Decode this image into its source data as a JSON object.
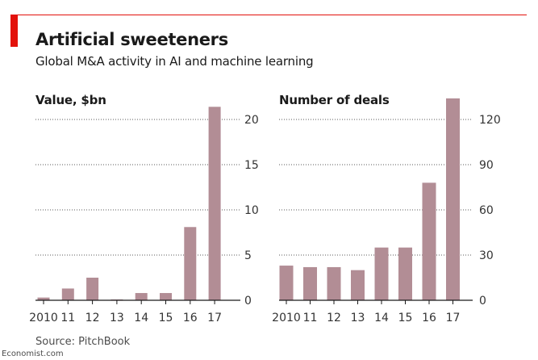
{
  "header": {
    "title": "Artificial sweeteners",
    "subtitle": "Global M&A activity in AI and machine learning"
  },
  "footer": {
    "source": "Source: PitchBook",
    "credit": "Economist.com"
  },
  "colors": {
    "bar": "#b28d95",
    "accent": "#e3120b",
    "grid": "#5a5a5a"
  },
  "chart_data": [
    {
      "type": "bar",
      "title": "Value, $bn",
      "categories": [
        "2010",
        "11",
        "12",
        "13",
        "14",
        "15",
        "16",
        "17"
      ],
      "values": [
        0.3,
        1.3,
        2.5,
        0.05,
        0.8,
        0.8,
        8.1,
        21.4
      ],
      "yticks": [
        0,
        5,
        10,
        15,
        20
      ],
      "ylim": [
        0,
        21.5
      ],
      "grid": true
    },
    {
      "type": "bar",
      "title": "Number of deals",
      "categories": [
        "2010",
        "11",
        "12",
        "13",
        "14",
        "15",
        "16",
        "17"
      ],
      "values": [
        23,
        22,
        22,
        20,
        35,
        35,
        78,
        134
      ],
      "yticks": [
        0,
        30,
        60,
        90,
        120
      ],
      "ylim": [
        0,
        135
      ],
      "grid": true
    }
  ]
}
